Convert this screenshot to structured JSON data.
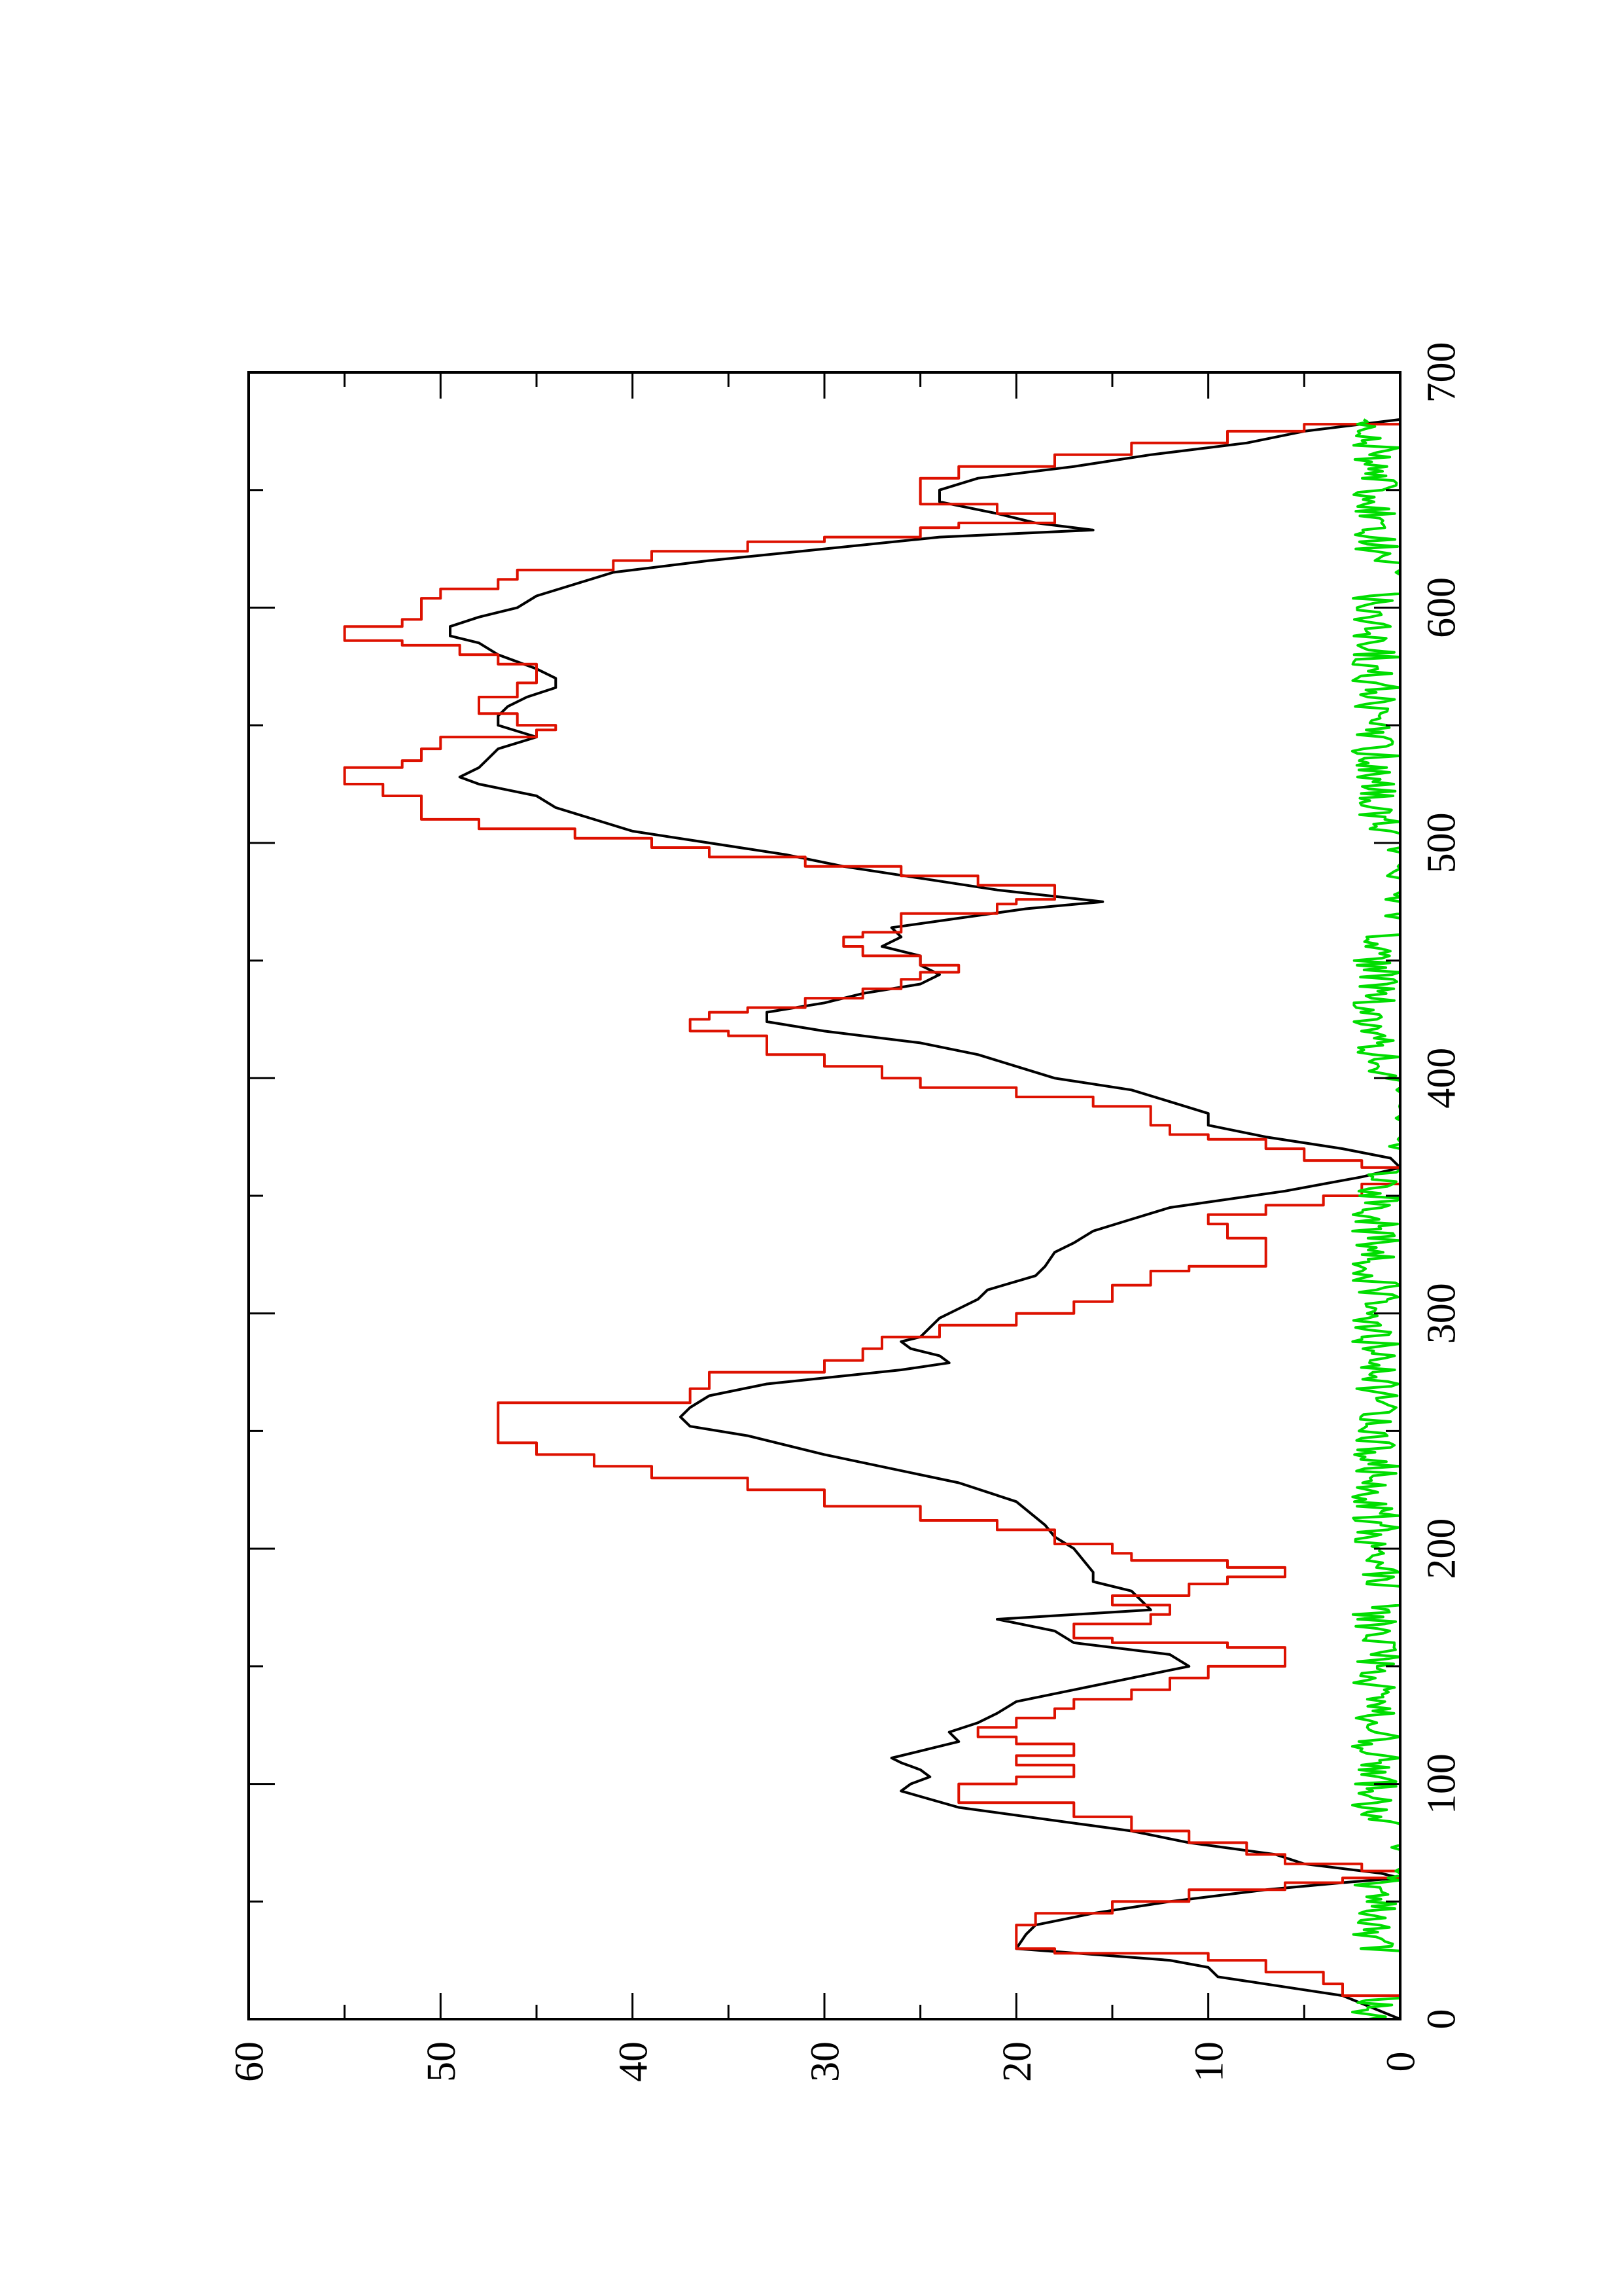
{
  "chart_data": {
    "type": "line",
    "orientation": "rotated 90° counter-clockwise (x axis runs vertically, y axis horizontally)",
    "title": "",
    "xlabel": "",
    "ylabel": "",
    "xlim": [
      0,
      700
    ],
    "ylim": [
      0,
      60
    ],
    "x_ticks": [
      0,
      100,
      200,
      300,
      400,
      500,
      600,
      700
    ],
    "y_ticks": [
      0,
      10,
      20,
      30,
      40,
      50,
      60
    ],
    "x_tick_labels": [
      "0",
      "100",
      "200",
      "300",
      "400",
      "500",
      "600",
      "700"
    ],
    "y_tick_labels": [
      "0",
      "10",
      "20",
      "30",
      "40",
      "50",
      "60"
    ],
    "grid": false,
    "legend": "none",
    "series": [
      {
        "color": "#000000",
        "style": "smooth",
        "points": [
          [
            0,
            0
          ],
          [
            10,
            3
          ],
          [
            18,
            9.5
          ],
          [
            22,
            10
          ],
          [
            25,
            12
          ],
          [
            30,
            20
          ],
          [
            36,
            19.5
          ],
          [
            40,
            19
          ],
          [
            45,
            16
          ],
          [
            50,
            12
          ],
          [
            55,
            7
          ],
          [
            58,
            3
          ],
          [
            60,
            0
          ],
          [
            62,
            1
          ],
          [
            66,
            5
          ],
          [
            70,
            6.5
          ],
          [
            75,
            11
          ],
          [
            80,
            14
          ],
          [
            90,
            23
          ],
          [
            97,
            26
          ],
          [
            100,
            25.5
          ],
          [
            103,
            24.5
          ],
          [
            106,
            25
          ],
          [
            109,
            26
          ],
          [
            111,
            26.5
          ],
          [
            114,
            25
          ],
          [
            118,
            23
          ],
          [
            122,
            23.5
          ],
          [
            126,
            22
          ],
          [
            130,
            21
          ],
          [
            135,
            20
          ],
          [
            140,
            17
          ],
          [
            145,
            14
          ],
          [
            150,
            11
          ],
          [
            155,
            12
          ],
          [
            160,
            17
          ],
          [
            165,
            18
          ],
          [
            170,
            21
          ],
          [
            174,
            13
          ],
          [
            178,
            13.5
          ],
          [
            182,
            14
          ],
          [
            186,
            16
          ],
          [
            190,
            16
          ],
          [
            195,
            16.5
          ],
          [
            200,
            17
          ],
          [
            205,
            18
          ],
          [
            210,
            18.5
          ],
          [
            220,
            20
          ],
          [
            228,
            23
          ],
          [
            240,
            30
          ],
          [
            248,
            34
          ],
          [
            252,
            37
          ],
          [
            256,
            37.5
          ],
          [
            260,
            37
          ],
          [
            265,
            36
          ],
          [
            270,
            33
          ],
          [
            276,
            26
          ],
          [
            279,
            23.5
          ],
          [
            282,
            24
          ],
          [
            285,
            25.5
          ],
          [
            288,
            26
          ],
          [
            290,
            25
          ],
          [
            294,
            24.5
          ],
          [
            298,
            24
          ],
          [
            302,
            23
          ],
          [
            306,
            22
          ],
          [
            310,
            21.5
          ],
          [
            316,
            19
          ],
          [
            320,
            18.5
          ],
          [
            326,
            18
          ],
          [
            330,
            17
          ],
          [
            335,
            16
          ],
          [
            340,
            14
          ],
          [
            345,
            12
          ],
          [
            352,
            6
          ],
          [
            358,
            2
          ],
          [
            362,
            0
          ],
          [
            366,
            0.5
          ],
          [
            370,
            3
          ],
          [
            375,
            7
          ],
          [
            380,
            10
          ],
          [
            385,
            10
          ],
          [
            390,
            12
          ],
          [
            395,
            14
          ],
          [
            400,
            18
          ],
          [
            405,
            20
          ],
          [
            410,
            22
          ],
          [
            415,
            25
          ],
          [
            420,
            30
          ],
          [
            424,
            33
          ],
          [
            428,
            33
          ],
          [
            432,
            30
          ],
          [
            436,
            28
          ],
          [
            440,
            25
          ],
          [
            444,
            24
          ],
          [
            448,
            25
          ],
          [
            452,
            25
          ],
          [
            456,
            27
          ],
          [
            460,
            26
          ],
          [
            464,
            26.5
          ],
          [
            468,
            23
          ],
          [
            472,
            19.5
          ],
          [
            475,
            15.5
          ],
          [
            480,
            21
          ],
          [
            485,
            25
          ],
          [
            490,
            29
          ],
          [
            495,
            32
          ],
          [
            500,
            36
          ],
          [
            505,
            40
          ],
          [
            510,
            42
          ],
          [
            515,
            44
          ],
          [
            520,
            45
          ],
          [
            525,
            48
          ],
          [
            528,
            49
          ],
          [
            532,
            48
          ],
          [
            536,
            47.5
          ],
          [
            540,
            47
          ],
          [
            545,
            45
          ],
          [
            550,
            47
          ],
          [
            554,
            47
          ],
          [
            558,
            46.5
          ],
          [
            562,
            45.5
          ],
          [
            566,
            44
          ],
          [
            570,
            44
          ],
          [
            574,
            45
          ],
          [
            580,
            47
          ],
          [
            585,
            48
          ],
          [
            588,
            49.5
          ],
          [
            592,
            49.5
          ],
          [
            596,
            48
          ],
          [
            600,
            46
          ],
          [
            605,
            45
          ],
          [
            610,
            43
          ],
          [
            615,
            41
          ],
          [
            620,
            36
          ],
          [
            625,
            30
          ],
          [
            630,
            24
          ],
          [
            633,
            16
          ],
          [
            636,
            19
          ],
          [
            640,
            21
          ],
          [
            645,
            24
          ],
          [
            650,
            24
          ],
          [
            655,
            22
          ],
          [
            660,
            17
          ],
          [
            665,
            13
          ],
          [
            670,
            8
          ],
          [
            675,
            5
          ],
          [
            680,
            0
          ]
        ]
      },
      {
        "color": "#dd1100",
        "style": "step",
        "points": [
          [
            0,
            0
          ],
          [
            10,
            3
          ],
          [
            15,
            4
          ],
          [
            20,
            7
          ],
          [
            25,
            10
          ],
          [
            28,
            18
          ],
          [
            30,
            20
          ],
          [
            36,
            20
          ],
          [
            40,
            19
          ],
          [
            45,
            15
          ],
          [
            50,
            11
          ],
          [
            55,
            6
          ],
          [
            58,
            3
          ],
          [
            60,
            0
          ],
          [
            63,
            2
          ],
          [
            66,
            6
          ],
          [
            70,
            8
          ],
          [
            75,
            11
          ],
          [
            80,
            14
          ],
          [
            86,
            17
          ],
          [
            92,
            23
          ],
          [
            98,
            23
          ],
          [
            100,
            20
          ],
          [
            103,
            17
          ],
          [
            106,
            17
          ],
          [
            108,
            20
          ],
          [
            110,
            20
          ],
          [
            112,
            17
          ],
          [
            115,
            17
          ],
          [
            117,
            20
          ],
          [
            120,
            22
          ],
          [
            122,
            22
          ],
          [
            124,
            20
          ],
          [
            128,
            18
          ],
          [
            132,
            17
          ],
          [
            136,
            14
          ],
          [
            140,
            12
          ],
          [
            145,
            10
          ],
          [
            150,
            6
          ],
          [
            155,
            6
          ],
          [
            158,
            9
          ],
          [
            160,
            15
          ],
          [
            162,
            17
          ],
          [
            165,
            17
          ],
          [
            168,
            13
          ],
          [
            172,
            12
          ],
          [
            176,
            15
          ],
          [
            180,
            11
          ],
          [
            185,
            9
          ],
          [
            188,
            6
          ],
          [
            190,
            6
          ],
          [
            192,
            9
          ],
          [
            195,
            14
          ],
          [
            198,
            15
          ],
          [
            202,
            18
          ],
          [
            208,
            21
          ],
          [
            212,
            25
          ],
          [
            218,
            30
          ],
          [
            225,
            34
          ],
          [
            230,
            39
          ],
          [
            235,
            42
          ],
          [
            240,
            45
          ],
          [
            245,
            47
          ],
          [
            260,
            47
          ],
          [
            262,
            37
          ],
          [
            268,
            36
          ],
          [
            275,
            30
          ],
          [
            280,
            28
          ],
          [
            285,
            27
          ],
          [
            290,
            24
          ],
          [
            295,
            20
          ],
          [
            300,
            17
          ],
          [
            305,
            15
          ],
          [
            312,
            13
          ],
          [
            318,
            11
          ],
          [
            320,
            7
          ],
          [
            330,
            7
          ],
          [
            332,
            9
          ],
          [
            338,
            10
          ],
          [
            342,
            7
          ],
          [
            346,
            4
          ],
          [
            350,
            2
          ],
          [
            355,
            0
          ],
          [
            360,
            0
          ],
          [
            362,
            2
          ],
          [
            365,
            5
          ],
          [
            370,
            7
          ],
          [
            374,
            10
          ],
          [
            376,
            12
          ],
          [
            380,
            13
          ],
          [
            385,
            13
          ],
          [
            388,
            16
          ],
          [
            392,
            20
          ],
          [
            396,
            25
          ],
          [
            400,
            27
          ],
          [
            405,
            30
          ],
          [
            410,
            33
          ],
          [
            418,
            35
          ],
          [
            420,
            37
          ],
          [
            425,
            36
          ],
          [
            428,
            34
          ],
          [
            430,
            31
          ],
          [
            434,
            28
          ],
          [
            438,
            26
          ],
          [
            442,
            25
          ],
          [
            445,
            23
          ],
          [
            448,
            25
          ],
          [
            450,
            25
          ],
          [
            452,
            28
          ],
          [
            456,
            29
          ],
          [
            460,
            28
          ],
          [
            462,
            26
          ],
          [
            466,
            26
          ],
          [
            470,
            21
          ],
          [
            474,
            20
          ],
          [
            476,
            18
          ],
          [
            478,
            18
          ],
          [
            482,
            22
          ],
          [
            486,
            26
          ],
          [
            490,
            31
          ],
          [
            494,
            36
          ],
          [
            498,
            39
          ],
          [
            502,
            43
          ],
          [
            506,
            48
          ],
          [
            510,
            51
          ],
          [
            520,
            53
          ],
          [
            525,
            55
          ],
          [
            530,
            55
          ],
          [
            532,
            52
          ],
          [
            535,
            51
          ],
          [
            540,
            50
          ],
          [
            545,
            45
          ],
          [
            548,
            44
          ],
          [
            550,
            46
          ],
          [
            552,
            46
          ],
          [
            555,
            48
          ],
          [
            560,
            48
          ],
          [
            562,
            46
          ],
          [
            566,
            46
          ],
          [
            568,
            45
          ],
          [
            572,
            45
          ],
          [
            576,
            47
          ],
          [
            580,
            49
          ],
          [
            584,
            52
          ],
          [
            586,
            55
          ],
          [
            590,
            55
          ],
          [
            592,
            52
          ],
          [
            595,
            51
          ],
          [
            600,
            51
          ],
          [
            604,
            50
          ],
          [
            608,
            47
          ],
          [
            612,
            46
          ],
          [
            616,
            41
          ],
          [
            620,
            39
          ],
          [
            624,
            34
          ],
          [
            628,
            30
          ],
          [
            630,
            25
          ],
          [
            634,
            23
          ],
          [
            636,
            18
          ],
          [
            640,
            21
          ],
          [
            644,
            25
          ],
          [
            650,
            25
          ],
          [
            655,
            23
          ],
          [
            660,
            18
          ],
          [
            665,
            14
          ],
          [
            670,
            9
          ],
          [
            675,
            5
          ],
          [
            678,
            0
          ]
        ]
      },
      {
        "color": "#00dd00",
        "style": "noise",
        "baseline": 0,
        "approx_amplitude": 2.5,
        "x_range": [
          0,
          680
        ],
        "active_ranges": [
          [
            0,
            8
          ],
          [
            30,
            60
          ],
          [
            85,
            175
          ],
          [
            185,
            360
          ],
          [
            400,
            460
          ],
          [
            505,
            605
          ],
          [
            620,
            680
          ]
        ]
      }
    ]
  }
}
